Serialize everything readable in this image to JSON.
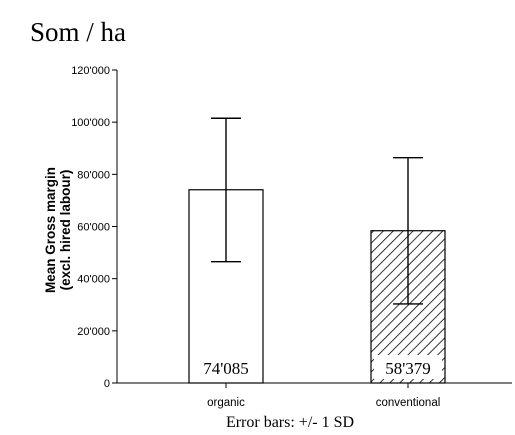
{
  "unit_label": "Som / ha",
  "footer_note": "Error bars: +/- 1 SD",
  "chart_data": {
    "type": "bar",
    "categories": [
      "organic",
      "conventional"
    ],
    "values": [
      74085,
      58379
    ],
    "value_labels": [
      "74'085",
      "58'379"
    ],
    "error_bars": {
      "organic": {
        "low": 46500,
        "high": 101500
      },
      "conventional": {
        "low": 30300,
        "high": 86400
      }
    },
    "ylabel": "Mean Gross margin\n(excl. hired labour)",
    "ylabel_lines": [
      "Mean Gross margin",
      "(excl. hired labour)"
    ],
    "ylim": [
      0,
      120000
    ],
    "yticks": [
      0,
      20000,
      40000,
      60000,
      80000,
      100000,
      120000
    ],
    "ytick_labels": [
      "0",
      "20'000",
      "40'000",
      "60'000",
      "80'000",
      "100'000",
      "120'000"
    ],
    "bar_styles": [
      "white",
      "diagonal-hatch"
    ],
    "grid": false
  }
}
